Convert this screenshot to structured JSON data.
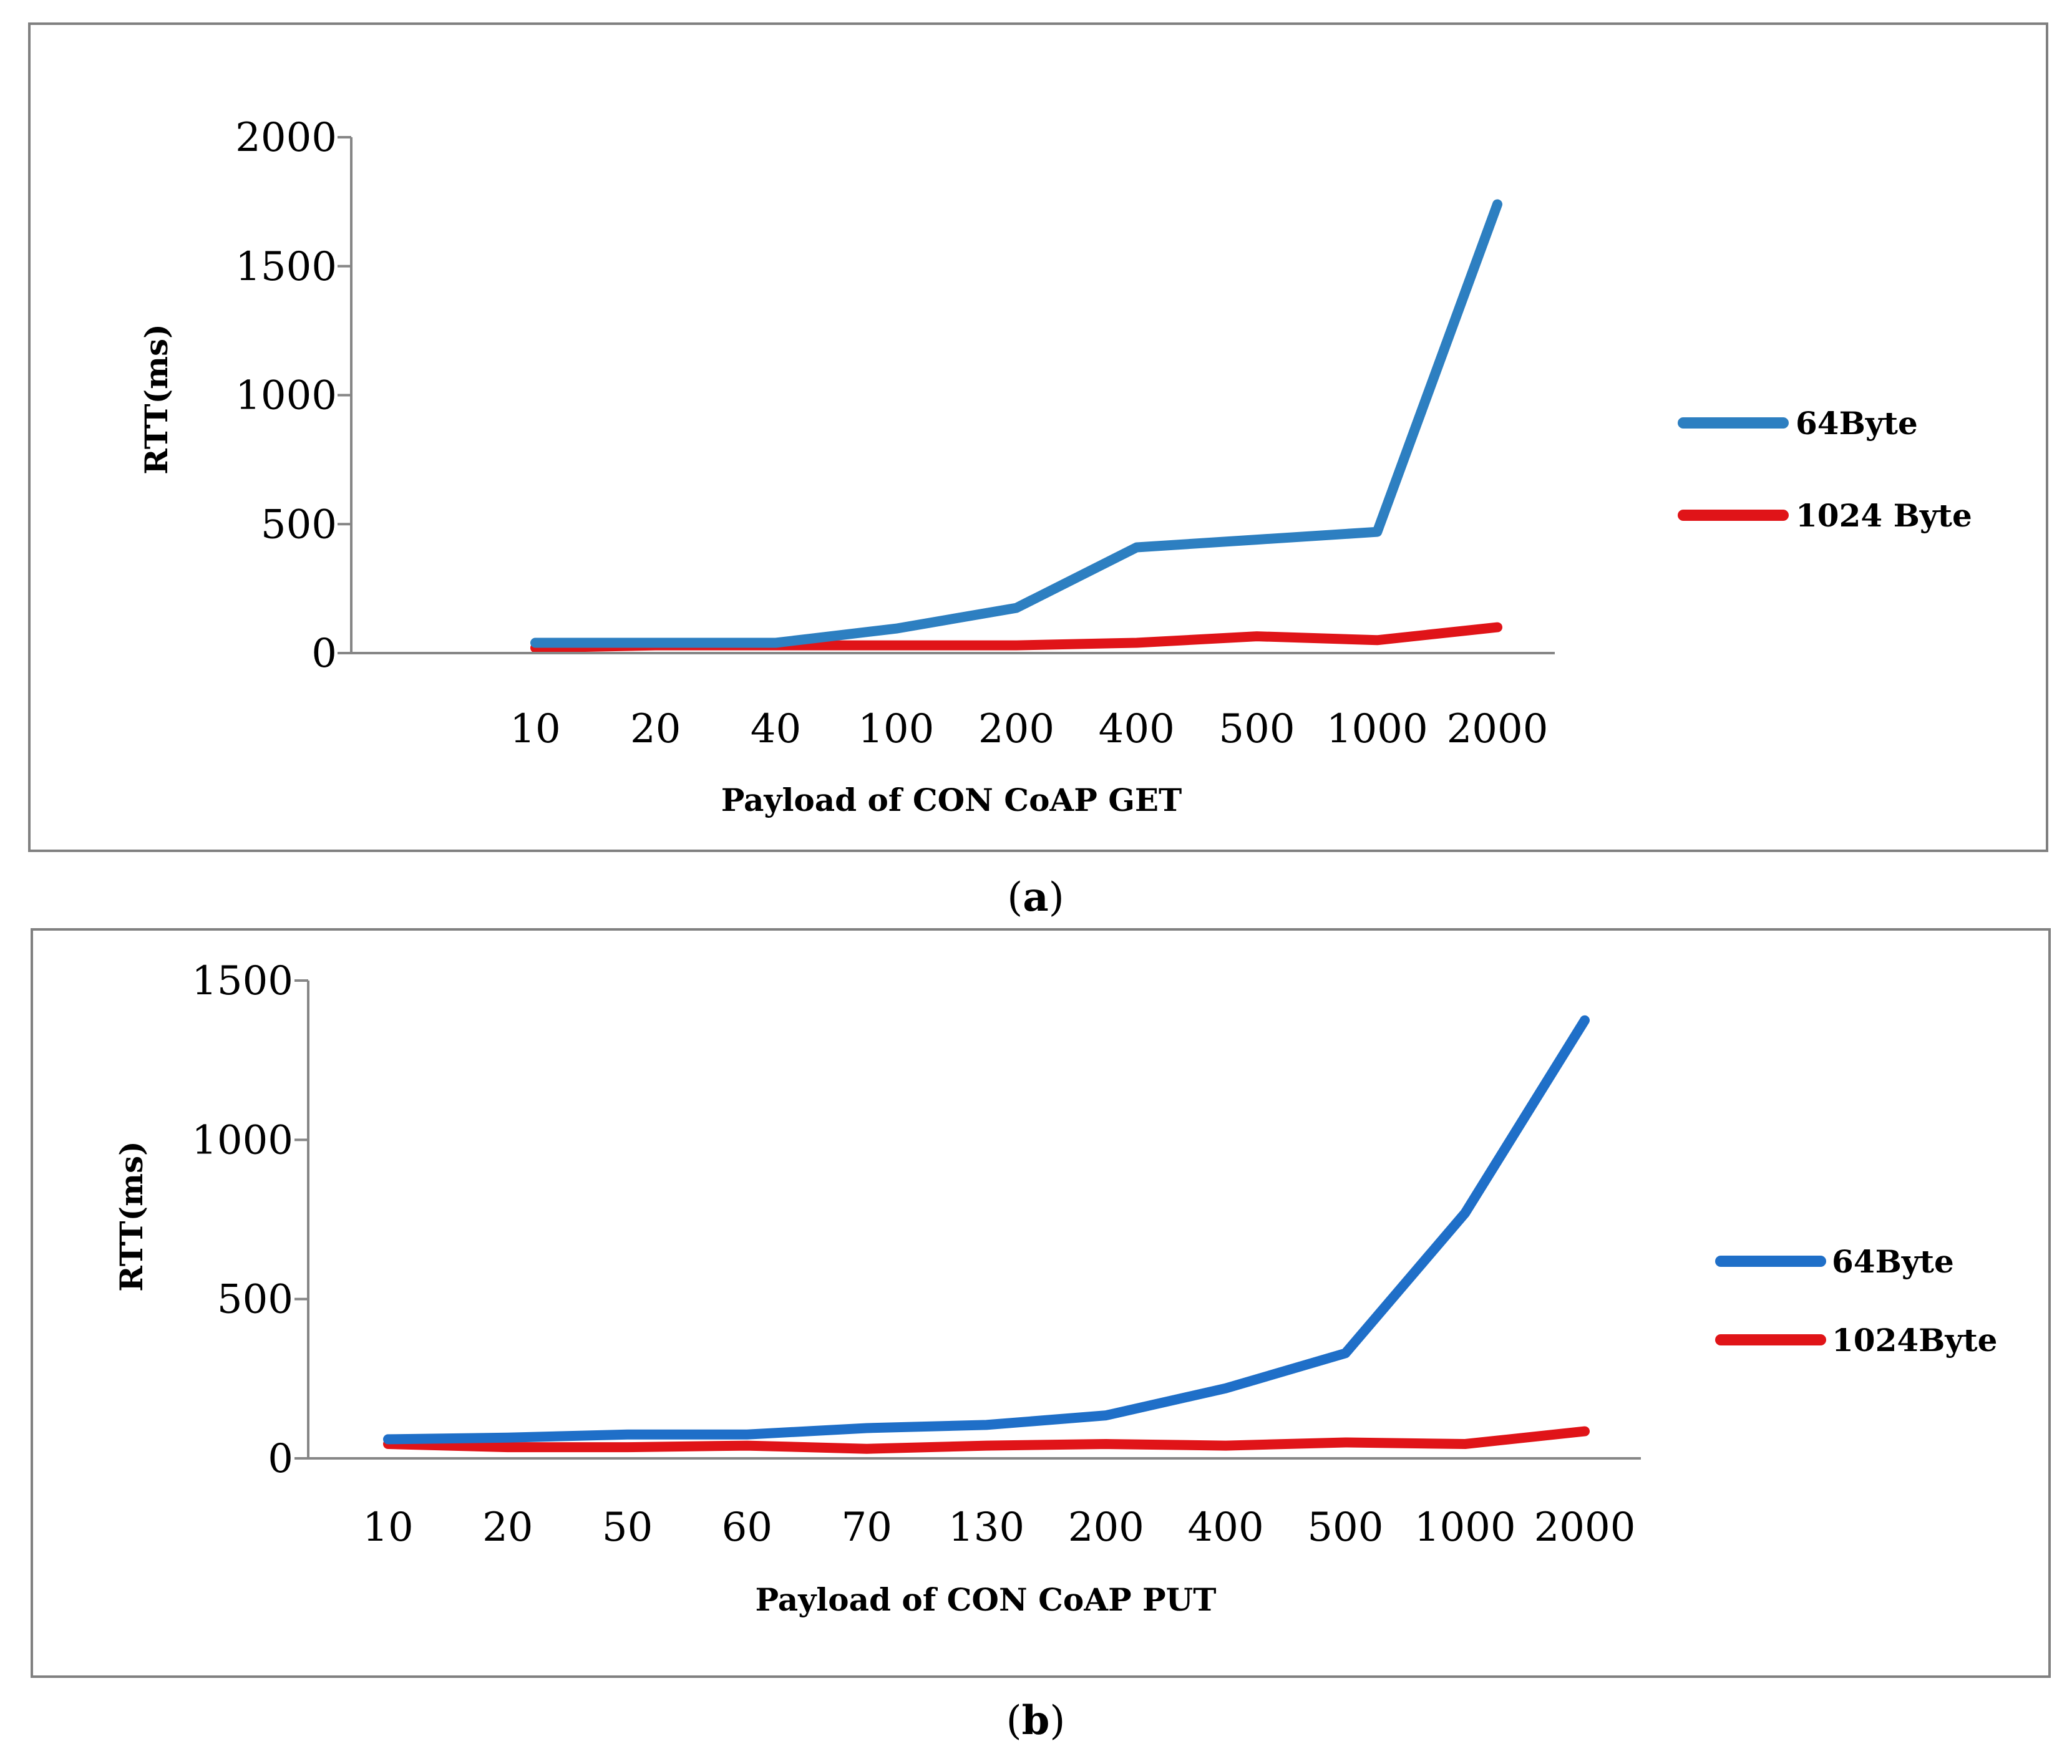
{
  "chart_data": [
    {
      "type": "line",
      "caption": "(a)",
      "caption_letter": "a",
      "categories": [
        "10",
        "20",
        "40",
        "100",
        "200",
        "400",
        "500",
        "1000",
        "2000"
      ],
      "series": [
        {
          "name": "64Byte",
          "color": "#2d7fc1",
          "values": [
            40,
            40,
            40,
            95,
            175,
            410,
            440,
            470,
            1740
          ]
        },
        {
          "name": "1024 Byte",
          "color": "#e01418",
          "values": [
            20,
            30,
            30,
            30,
            30,
            40,
            65,
            50,
            100
          ]
        }
      ],
      "title": "",
      "xlabel": "Payload of  CON CoAP GET",
      "ylabel": "RTT(ms)",
      "ylim": [
        0,
        2000
      ],
      "yticks": [
        "0",
        "500",
        "1000",
        "1500",
        "2000"
      ],
      "legend": "right"
    },
    {
      "type": "line",
      "caption": "(b)",
      "caption_letter": "b",
      "categories": [
        "10",
        "20",
        "50",
        "60",
        "70",
        "130",
        "200",
        "400",
        "500",
        "1000",
        "2000"
      ],
      "series": [
        {
          "name": "64Byte",
          "color": "#1f6fc8",
          "values": [
            60,
            65,
            75,
            75,
            95,
            105,
            135,
            220,
            330,
            770,
            1375
          ]
        },
        {
          "name": "1024Byte",
          "color": "#e01418",
          "values": [
            45,
            35,
            35,
            40,
            30,
            40,
            45,
            40,
            50,
            45,
            85
          ]
        }
      ],
      "title": "",
      "xlabel": "Payload of CON CoAP PUT",
      "ylabel": "RTT(ms)",
      "ylim": [
        0,
        1500
      ],
      "yticks": [
        "0",
        "500",
        "1000",
        "1500"
      ],
      "legend": "right"
    }
  ]
}
